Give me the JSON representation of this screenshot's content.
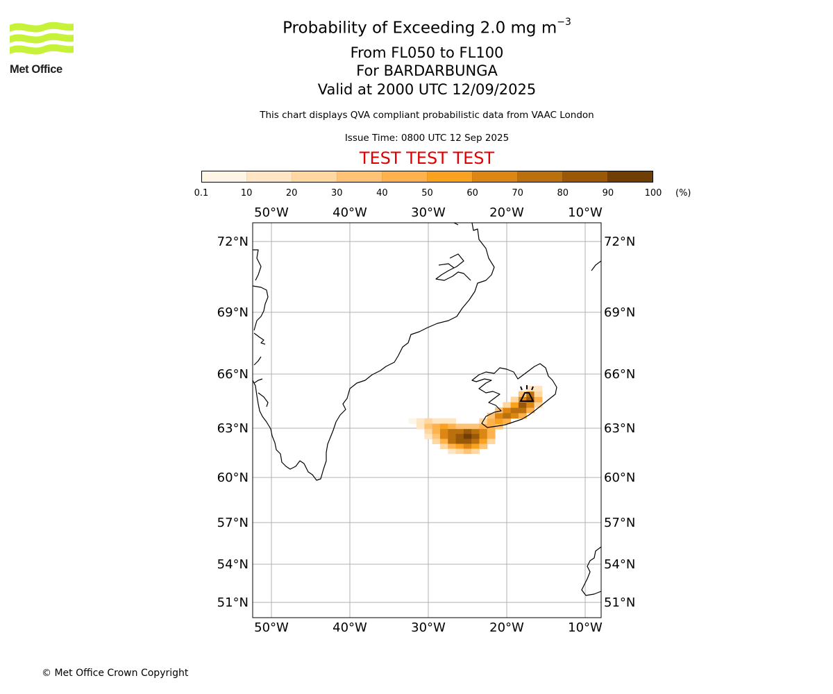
{
  "header": {
    "logo_text": "Met Office",
    "title_main": "Probability of Exceeding 2.0 mg m",
    "title_sup": "−3",
    "flight_levels": "From FL050 to FL100",
    "volcano": "For BARDARBUNGA",
    "valid_time": "Valid at 2000 UTC 12/09/2025",
    "note": "This chart displays QVA compliant probabilistic data from VAAC London",
    "issue_time": "Issue Time: 0800 UTC 12 Sep 2025",
    "test_banner": "TEST TEST TEST"
  },
  "colorbar": {
    "unit": "(%)",
    "ticks": [
      "0.1",
      "10",
      "20",
      "30",
      "40",
      "50",
      "60",
      "70",
      "80",
      "90",
      "100"
    ],
    "colors": [
      "#fff5e6",
      "#fee6c5",
      "#fed8a0",
      "#fec375",
      "#fdb24d",
      "#f9a21f",
      "#dc8613",
      "#bb700e",
      "#995909",
      "#6f3f06"
    ]
  },
  "map": {
    "lon_labels": [
      "50°W",
      "40°W",
      "30°W",
      "20°W",
      "10°W"
    ],
    "lat_labels": [
      "72°N",
      "69°N",
      "66°N",
      "63°N",
      "60°N",
      "57°N",
      "54°N",
      "51°N"
    ],
    "volcano_icon": "volcano-icon",
    "probability_cells_pct": [
      [
        -32,
        63.4,
        5
      ],
      [
        -31,
        63.4,
        15
      ],
      [
        -30,
        63.4,
        22
      ],
      [
        -29,
        63.4,
        18
      ],
      [
        -28,
        63.4,
        12
      ],
      [
        -27,
        63.4,
        10
      ],
      [
        -31,
        63.1,
        12
      ],
      [
        -30,
        63.1,
        30
      ],
      [
        -29,
        63.1,
        42
      ],
      [
        -28,
        63.1,
        50
      ],
      [
        -27,
        63.1,
        45
      ],
      [
        -26,
        63.1,
        35
      ],
      [
        -25,
        63.1,
        30
      ],
      [
        -24,
        63.1,
        35
      ],
      [
        -23,
        63.1,
        42
      ],
      [
        -22,
        63.1,
        40
      ],
      [
        -21,
        63.1,
        30
      ],
      [
        -30,
        62.8,
        20
      ],
      [
        -29,
        62.8,
        45
      ],
      [
        -28,
        62.8,
        62
      ],
      [
        -27,
        62.8,
        70
      ],
      [
        -26,
        62.8,
        75
      ],
      [
        -25,
        62.8,
        80
      ],
      [
        -24,
        62.8,
        72
      ],
      [
        -23,
        62.8,
        62
      ],
      [
        -22,
        62.8,
        45
      ],
      [
        -30,
        62.5,
        15
      ],
      [
        -29,
        62.5,
        38
      ],
      [
        -28,
        62.5,
        65
      ],
      [
        -27,
        62.5,
        78
      ],
      [
        -26,
        62.5,
        88
      ],
      [
        -25,
        62.5,
        92
      ],
      [
        -24,
        62.5,
        82
      ],
      [
        -23,
        62.5,
        65
      ],
      [
        -22,
        62.5,
        40
      ],
      [
        -29,
        62.2,
        22
      ],
      [
        -28,
        62.2,
        48
      ],
      [
        -27,
        62.2,
        70
      ],
      [
        -26,
        62.2,
        82
      ],
      [
        -25,
        62.2,
        85
      ],
      [
        -24,
        62.2,
        72
      ],
      [
        -23,
        62.2,
        50
      ],
      [
        -22,
        62.2,
        25
      ],
      [
        -28,
        61.9,
        20
      ],
      [
        -27,
        61.9,
        40
      ],
      [
        -26,
        61.9,
        55
      ],
      [
        -25,
        61.9,
        62
      ],
      [
        -24,
        61.9,
        50
      ],
      [
        -23,
        61.9,
        30
      ],
      [
        -27,
        61.6,
        15
      ],
      [
        -26,
        61.6,
        25
      ],
      [
        -25,
        61.6,
        30
      ],
      [
        -24,
        61.6,
        22
      ],
      [
        -23,
        63.4,
        25
      ],
      [
        -22,
        63.4,
        45
      ],
      [
        -21,
        63.4,
        55
      ],
      [
        -20,
        63.4,
        45
      ],
      [
        -22,
        63.7,
        35
      ],
      [
        -21,
        63.7,
        60
      ],
      [
        -20,
        63.7,
        72
      ],
      [
        -19,
        63.7,
        60
      ],
      [
        -18,
        63.7,
        40
      ],
      [
        -21,
        64.0,
        30
      ],
      [
        -20,
        64.0,
        62
      ],
      [
        -19,
        64.0,
        78
      ],
      [
        -18,
        64.0,
        70
      ],
      [
        -17,
        64.0,
        40
      ],
      [
        -20,
        64.3,
        28
      ],
      [
        -19,
        64.3,
        55
      ],
      [
        -18,
        64.3,
        80
      ],
      [
        -17,
        64.3,
        65
      ],
      [
        -16,
        64.3,
        25
      ],
      [
        -19,
        64.6,
        25
      ],
      [
        -18,
        64.6,
        60
      ],
      [
        -17,
        64.6,
        88
      ],
      [
        -16,
        64.6,
        45
      ],
      [
        -18,
        64.9,
        30
      ],
      [
        -17,
        64.9,
        70
      ],
      [
        -16,
        64.9,
        25
      ],
      [
        -17,
        65.2,
        15
      ],
      [
        -16,
        65.2,
        10
      ]
    ]
  },
  "footer": {
    "copyright": "© Met Office Crown Copyright"
  }
}
